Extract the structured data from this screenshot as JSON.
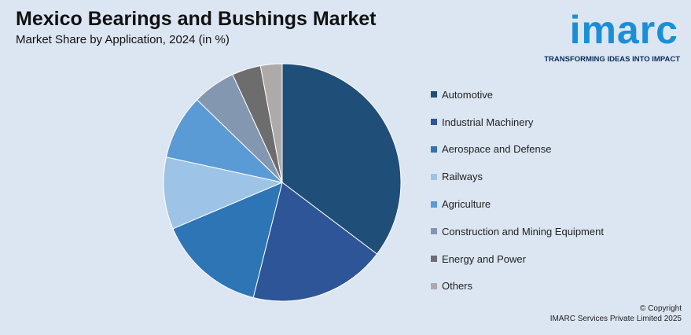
{
  "header": {
    "title": "Mexico Bearings and Bushings Market",
    "subtitle": "Market Share by Application, 2024 (in %)"
  },
  "logo": {
    "word": "imarc",
    "tagline": "TRANSFORMING IDEAS INTO IMPACT"
  },
  "footer": {
    "copyright_line1": "© Copyright",
    "copyright_line2": "IMARC Services Private Limited 2025"
  },
  "chart_data": {
    "type": "pie",
    "legend_position": "right",
    "series": [
      {
        "name": "Automotive",
        "value": 36,
        "color": "#1f4e79"
      },
      {
        "name": "Industrial Machinery",
        "value": 19,
        "color": "#2e5597"
      },
      {
        "name": "Aerospace and Defense",
        "value": 15,
        "color": "#2e75b6"
      },
      {
        "name": "Railways",
        "value": 10,
        "color": "#9dc3e6"
      },
      {
        "name": "Agriculture",
        "value": 9,
        "color": "#5b9bd5"
      },
      {
        "name": "Construction and Mining Equipment",
        "value": 6,
        "color": "#8497b0"
      },
      {
        "name": "Energy and Power",
        "value": 4,
        "color": "#6d6d6d"
      },
      {
        "name": "Others",
        "value": 3,
        "color": "#aeaaaa"
      }
    ]
  }
}
